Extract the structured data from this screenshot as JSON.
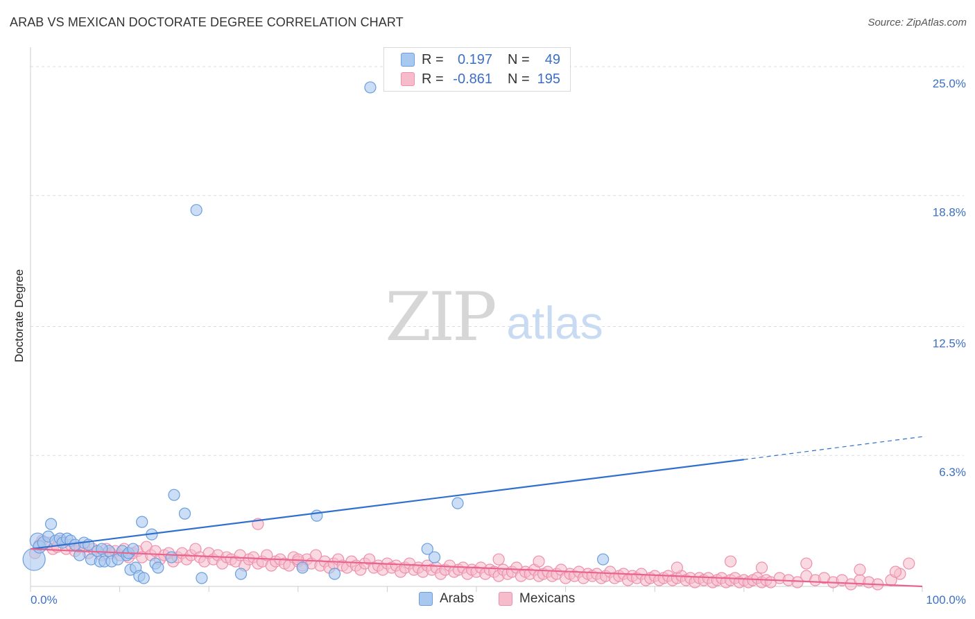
{
  "header": {
    "title": "ARAB VS MEXICAN DOCTORATE DEGREE CORRELATION CHART",
    "source": "Source: ZipAtlas.com"
  },
  "legend": {
    "arabs": {
      "r_label": "R =",
      "r_value": "0.197",
      "n_label": "N =",
      "n_value": "49"
    },
    "mexicans": {
      "r_label": "R =",
      "r_value": "-0.861",
      "n_label": "N =",
      "n_value": "195"
    }
  },
  "bottom_legend": {
    "arabs": "Arabs",
    "mexicans": "Mexicans"
  },
  "watermark": {
    "zip": "ZIP",
    "atlas": "atlas"
  },
  "colors": {
    "arab_fill": "#a8c8ef",
    "arab_stroke": "#6a9ede",
    "arab_line": "#2f6fcd",
    "mex_fill": "#f6bccb",
    "mex_stroke": "#ee8fab",
    "mex_line": "#e8648f",
    "tick_blue": "#3c6fc4",
    "grid": "#dcdcdc"
  },
  "chart_data": {
    "type": "scatter",
    "title": "ARAB VS MEXICAN DOCTORATE DEGREE CORRELATION CHART",
    "xlabel": "",
    "ylabel": "Doctorate Degree",
    "xlim": [
      0,
      100
    ],
    "ylim": [
      0,
      25.6
    ],
    "x_tick_labels": [
      "0.0%",
      "100.0%"
    ],
    "y_ticks": [
      6.3,
      12.5,
      18.8,
      25.0
    ],
    "y_tick_labels": [
      "6.3%",
      "12.5%",
      "18.8%",
      "25.0%"
    ],
    "series": [
      {
        "name": "Arabs",
        "r": 0.197,
        "n": 49,
        "trend": {
          "x0": 0,
          "y0": 1.8,
          "x1": 80,
          "y1": 6.1,
          "dashed_to_x": 100,
          "dashed_to_y": 7.2
        },
        "points": [
          [
            0.4,
            1.3,
            16
          ],
          [
            0.8,
            2.2,
            11
          ],
          [
            1.0,
            1.9,
            9
          ],
          [
            1.5,
            2.1,
            9
          ],
          [
            2.0,
            2.4,
            8
          ],
          [
            2.3,
            3.0,
            8
          ],
          [
            2.8,
            2.2,
            8
          ],
          [
            3.3,
            2.3,
            8
          ],
          [
            3.6,
            2.1,
            8
          ],
          [
            4.1,
            2.3,
            8
          ],
          [
            4.5,
            2.2,
            8
          ],
          [
            5.0,
            2.0,
            8
          ],
          [
            5.5,
            1.5,
            8
          ],
          [
            6.0,
            2.1,
            8
          ],
          [
            6.5,
            2.0,
            8
          ],
          [
            6.8,
            1.3,
            8
          ],
          [
            7.5,
            1.7,
            8
          ],
          [
            7.8,
            1.2,
            8
          ],
          [
            8.3,
            1.2,
            8
          ],
          [
            8.8,
            1.7,
            8
          ],
          [
            9.1,
            1.2,
            8
          ],
          [
            9.8,
            1.3,
            8
          ],
          [
            10.3,
            1.7,
            8
          ],
          [
            10.8,
            1.5,
            8
          ],
          [
            11.0,
            1.6,
            8
          ],
          [
            11.5,
            1.8,
            8
          ],
          [
            11.2,
            0.8,
            8
          ],
          [
            11.8,
            0.9,
            8
          ],
          [
            12.2,
            0.5,
            8
          ],
          [
            12.5,
            3.1,
            8
          ],
          [
            12.7,
            0.4,
            8
          ],
          [
            13.6,
            2.5,
            8
          ],
          [
            14.0,
            1.1,
            8
          ],
          [
            14.3,
            0.9,
            8
          ],
          [
            15.8,
            1.4,
            8
          ],
          [
            16.1,
            4.4,
            8
          ],
          [
            17.3,
            3.5,
            8
          ],
          [
            18.6,
            18.1,
            8
          ],
          [
            19.2,
            0.4,
            8
          ],
          [
            23.6,
            0.6,
            8
          ],
          [
            30.5,
            0.9,
            8
          ],
          [
            32.1,
            3.4,
            8
          ],
          [
            34.1,
            0.6,
            8
          ],
          [
            38.1,
            24.0,
            8
          ],
          [
            44.5,
            1.8,
            8
          ],
          [
            45.3,
            1.4,
            8
          ],
          [
            47.9,
            4.0,
            8
          ],
          [
            64.2,
            1.3,
            8
          ],
          [
            8.0,
            1.8,
            8
          ]
        ]
      },
      {
        "name": "Mexicans",
        "r": -0.861,
        "n": 195,
        "trend": {
          "x0": 0,
          "y0": 1.8,
          "x1": 100,
          "y1": 0.0
        },
        "points": [
          [
            0.5,
            1.6
          ],
          [
            1.0,
            2.0
          ],
          [
            1.3,
            2.2
          ],
          [
            2.0,
            2.1
          ],
          [
            2.5,
            1.8
          ],
          [
            3.0,
            1.9
          ],
          [
            3.5,
            2.2
          ],
          [
            4.0,
            1.8
          ],
          [
            4.5,
            2.0
          ],
          [
            5.0,
            1.7
          ],
          [
            5.5,
            1.9
          ],
          [
            6.0,
            1.9
          ],
          [
            6.5,
            1.6
          ],
          [
            7.0,
            1.8
          ],
          [
            7.5,
            1.7
          ],
          [
            8.0,
            1.5
          ],
          [
            8.5,
            1.8
          ],
          [
            9.0,
            1.6
          ],
          [
            9.5,
            1.7
          ],
          [
            10.0,
            1.5
          ],
          [
            10.5,
            1.8
          ],
          [
            11.0,
            1.4
          ],
          [
            11.5,
            1.6
          ],
          [
            12.0,
            1.7
          ],
          [
            12.5,
            1.4
          ],
          [
            13.0,
            1.9
          ],
          [
            13.5,
            1.5
          ],
          [
            14.0,
            1.7
          ],
          [
            14.5,
            1.3
          ],
          [
            15.0,
            1.5
          ],
          [
            15.5,
            1.6
          ],
          [
            16.0,
            1.2
          ],
          [
            16.5,
            1.4
          ],
          [
            17.0,
            1.6
          ],
          [
            17.5,
            1.3
          ],
          [
            18.0,
            1.5
          ],
          [
            18.5,
            1.8
          ],
          [
            19.0,
            1.4
          ],
          [
            19.5,
            1.2
          ],
          [
            20.0,
            1.6
          ],
          [
            20.5,
            1.3
          ],
          [
            21.0,
            1.5
          ],
          [
            21.5,
            1.1
          ],
          [
            22.0,
            1.4
          ],
          [
            22.5,
            1.3
          ],
          [
            23.0,
            1.2
          ],
          [
            23.5,
            1.5
          ],
          [
            24.0,
            1.0
          ],
          [
            24.5,
            1.3
          ],
          [
            25.0,
            1.4
          ],
          [
            25.5,
            1.1
          ],
          [
            26.0,
            1.2
          ],
          [
            26.5,
            1.5
          ],
          [
            27.0,
            1.0
          ],
          [
            27.5,
            1.2
          ],
          [
            28.0,
            1.3
          ],
          [
            28.5,
            1.1
          ],
          [
            29.0,
            1.0
          ],
          [
            29.5,
            1.4
          ],
          [
            30.0,
            1.2
          ],
          [
            30.5,
            1.0
          ],
          [
            31.0,
            1.3
          ],
          [
            31.5,
            1.1
          ],
          [
            32.0,
            1.5
          ],
          [
            32.5,
            1.0
          ],
          [
            33.0,
            1.2
          ],
          [
            33.5,
            0.9
          ],
          [
            34.0,
            1.1
          ],
          [
            34.5,
            1.3
          ],
          [
            35.0,
            1.0
          ],
          [
            35.5,
            0.9
          ],
          [
            36.0,
            1.2
          ],
          [
            36.5,
            1.0
          ],
          [
            37.0,
            0.8
          ],
          [
            37.5,
            1.1
          ],
          [
            38.0,
            1.3
          ],
          [
            38.5,
            0.9
          ],
          [
            39.0,
            1.0
          ],
          [
            39.5,
            0.8
          ],
          [
            40.0,
            1.1
          ],
          [
            40.5,
            0.9
          ],
          [
            41.0,
            1.0
          ],
          [
            41.5,
            0.7
          ],
          [
            42.0,
            0.9
          ],
          [
            42.5,
            1.1
          ],
          [
            43.0,
            0.8
          ],
          [
            43.5,
            0.9
          ],
          [
            44.0,
            0.7
          ],
          [
            44.5,
            1.0
          ],
          [
            45.0,
            0.8
          ],
          [
            45.5,
            0.9
          ],
          [
            46.0,
            0.6
          ],
          [
            46.5,
            0.8
          ],
          [
            47.0,
            1.0
          ],
          [
            47.5,
            0.7
          ],
          [
            48.0,
            0.8
          ],
          [
            48.5,
            0.9
          ],
          [
            49.0,
            0.6
          ],
          [
            49.5,
            0.8
          ],
          [
            50.0,
            0.7
          ],
          [
            50.5,
            0.9
          ],
          [
            51.0,
            0.6
          ],
          [
            51.5,
            0.8
          ],
          [
            52.0,
            0.7
          ],
          [
            52.5,
            0.5
          ],
          [
            53.0,
            0.8
          ],
          [
            53.5,
            0.6
          ],
          [
            54.0,
            0.7
          ],
          [
            54.5,
            0.9
          ],
          [
            55.0,
            0.5
          ],
          [
            55.5,
            0.7
          ],
          [
            56.0,
            0.6
          ],
          [
            56.5,
            0.8
          ],
          [
            57.0,
            0.5
          ],
          [
            57.5,
            0.6
          ],
          [
            58.0,
            0.7
          ],
          [
            58.5,
            0.5
          ],
          [
            59.0,
            0.6
          ],
          [
            59.5,
            0.8
          ],
          [
            60.0,
            0.4
          ],
          [
            60.5,
            0.6
          ],
          [
            61.0,
            0.5
          ],
          [
            61.5,
            0.7
          ],
          [
            62.0,
            0.4
          ],
          [
            62.5,
            0.6
          ],
          [
            63.0,
            0.5
          ],
          [
            63.5,
            0.6
          ],
          [
            64.0,
            0.4
          ],
          [
            64.5,
            0.5
          ],
          [
            65.0,
            0.7
          ],
          [
            65.5,
            0.4
          ],
          [
            66.0,
            0.5
          ],
          [
            66.5,
            0.6
          ],
          [
            67.0,
            0.3
          ],
          [
            67.5,
            0.5
          ],
          [
            68.0,
            0.4
          ],
          [
            68.5,
            0.6
          ],
          [
            69.0,
            0.3
          ],
          [
            69.5,
            0.4
          ],
          [
            70.0,
            0.5
          ],
          [
            70.5,
            0.3
          ],
          [
            71.0,
            0.4
          ],
          [
            71.5,
            0.5
          ],
          [
            72.0,
            0.3
          ],
          [
            72.5,
            0.4
          ],
          [
            73.0,
            0.5
          ],
          [
            73.5,
            0.3
          ],
          [
            74.0,
            0.4
          ],
          [
            74.5,
            0.2
          ],
          [
            75.0,
            0.4
          ],
          [
            75.5,
            0.3
          ],
          [
            76.0,
            0.4
          ],
          [
            76.5,
            0.2
          ],
          [
            77.0,
            0.3
          ],
          [
            77.5,
            0.4
          ],
          [
            78.0,
            0.2
          ],
          [
            78.5,
            0.3
          ],
          [
            79.0,
            0.4
          ],
          [
            79.5,
            0.2
          ],
          [
            80.0,
            0.3
          ],
          [
            80.5,
            0.2
          ],
          [
            81.0,
            0.3
          ],
          [
            81.5,
            0.4
          ],
          [
            82.0,
            0.2
          ],
          [
            82.5,
            0.3
          ],
          [
            83.0,
            0.2
          ],
          [
            84.0,
            0.4
          ],
          [
            85.0,
            0.3
          ],
          [
            86.0,
            0.2
          ],
          [
            87.0,
            0.5
          ],
          [
            88.0,
            0.3
          ],
          [
            89.0,
            0.4
          ],
          [
            90.0,
            0.2
          ],
          [
            91.0,
            0.3
          ],
          [
            92.0,
            0.1
          ],
          [
            93.0,
            0.3
          ],
          [
            94.0,
            0.2
          ],
          [
            95.0,
            0.1
          ],
          [
            96.5,
            0.3
          ],
          [
            97.5,
            0.6
          ],
          [
            98.5,
            1.1
          ],
          [
            25.5,
            3.0
          ],
          [
            52.5,
            1.3
          ],
          [
            72.5,
            0.9
          ],
          [
            78.5,
            1.2
          ],
          [
            82.0,
            0.9
          ],
          [
            87.0,
            1.1
          ],
          [
            93.0,
            0.8
          ],
          [
            97.0,
            0.7
          ],
          [
            57.0,
            1.2
          ],
          [
            30.0,
            1.3
          ]
        ]
      }
    ]
  }
}
